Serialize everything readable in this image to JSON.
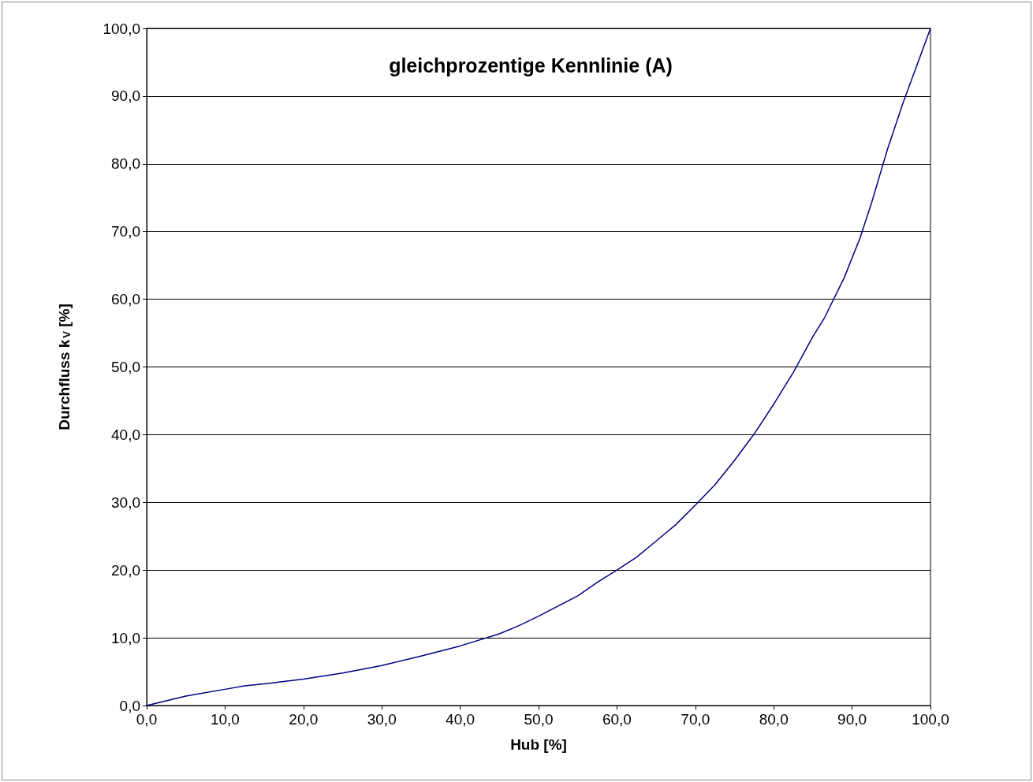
{
  "chart_data": {
    "type": "line",
    "title": "gleichprozentige Kennlinie (A)",
    "xlabel": "Hub [%]",
    "ylabel": "Durchfluss k$_{V}$ [%]",
    "x": [
      0,
      5,
      10,
      12.5,
      15,
      20,
      25,
      30,
      35,
      40,
      45,
      47.5,
      50,
      55,
      57.5,
      60,
      62.5,
      65,
      67.5,
      70,
      72.5,
      75,
      77.5,
      80,
      82.5,
      85,
      86.5,
      89,
      91,
      92.5,
      94.5,
      96.5,
      100
    ],
    "series": [
      {
        "color": "#000080",
        "values": [
          0,
          1.4,
          2.4,
          2.9,
          3.2,
          3.9,
          4.8,
          5.9,
          7.3,
          8.8,
          10.6,
          11.8,
          13.2,
          16.2,
          18.2,
          20.0,
          21.9,
          24.3,
          26.7,
          29.6,
          32.6,
          36.2,
          40.1,
          44.5,
          49.2,
          54.5,
          57.3,
          63.2,
          69.0,
          74.3,
          82.1,
          89.0,
          100
        ]
      }
    ],
    "xlim": [
      0,
      100
    ],
    "ylim": [
      0,
      100
    ],
    "xticks": [
      {
        "value": 0,
        "label": "0,0"
      },
      {
        "value": 10,
        "label": "10,0"
      },
      {
        "value": 20,
        "label": "20,0"
      },
      {
        "value": 30,
        "label": "30,0"
      },
      {
        "value": 40,
        "label": "40,0"
      },
      {
        "value": 50,
        "label": "50,0"
      },
      {
        "value": 60,
        "label": "60,0"
      },
      {
        "value": 70,
        "label": "70,0"
      },
      {
        "value": 80,
        "label": "80,0"
      },
      {
        "value": 90,
        "label": "90,0"
      },
      {
        "value": 100,
        "label": "100,0"
      }
    ],
    "yticks": [
      {
        "value": 0,
        "label": "0,0"
      },
      {
        "value": 10,
        "label": "10,0"
      },
      {
        "value": 20,
        "label": "20,0"
      },
      {
        "value": 30,
        "label": "30,0"
      },
      {
        "value": 40,
        "label": "40,0"
      },
      {
        "value": 50,
        "label": "50,0"
      },
      {
        "value": 60,
        "label": "60,0"
      },
      {
        "value": 70,
        "label": "70,0"
      },
      {
        "value": 80,
        "label": "80,0"
      },
      {
        "value": 90,
        "label": "90,0"
      },
      {
        "value": 100,
        "label": "100,0"
      }
    ],
    "grid": "y",
    "marker": "none",
    "line_style": "solid"
  }
}
